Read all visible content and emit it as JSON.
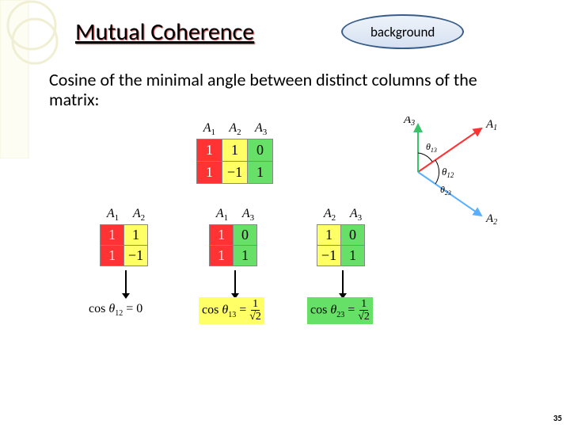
{
  "header": {
    "title": "Mutual Coherence",
    "badge": "background"
  },
  "definition": "Cosine of the minimal angle between distinct columns of the matrix:",
  "main_matrix": {
    "headers": [
      "A₁",
      "A₂",
      "A₃"
    ],
    "rows": [
      [
        {
          "v": "1",
          "c": "red"
        },
        {
          "v": "1",
          "c": "yellow"
        },
        {
          "v": "0",
          "c": "green"
        }
      ],
      [
        {
          "v": "1",
          "c": "red"
        },
        {
          "v": "−1",
          "c": "yellow"
        },
        {
          "v": "1",
          "c": "green"
        }
      ]
    ]
  },
  "sub_matrices": [
    {
      "headers": [
        "A₁",
        "A₂"
      ],
      "rows": [
        [
          {
            "v": "1",
            "c": "red"
          },
          {
            "v": "1",
            "c": "yellow"
          }
        ],
        [
          {
            "v": "1",
            "c": "red"
          },
          {
            "v": "−1",
            "c": "yellow"
          }
        ]
      ],
      "cos_label": "cos θ₁₂ = 0",
      "cos_class": ""
    },
    {
      "headers": [
        "A₁",
        "A₃"
      ],
      "rows": [
        [
          {
            "v": "1",
            "c": "red"
          },
          {
            "v": "0",
            "c": "green"
          }
        ],
        [
          {
            "v": "1",
            "c": "red"
          },
          {
            "v": "1",
            "c": "green"
          }
        ]
      ],
      "cos_label_prefix": "cos θ₁₃ =",
      "cos_frac_num": "1",
      "cos_frac_den": "√2",
      "cos_class": "yellow"
    },
    {
      "headers": [
        "A₂",
        "A₃"
      ],
      "rows": [
        [
          {
            "v": "1",
            "c": "yellow"
          },
          {
            "v": "0",
            "c": "green"
          }
        ],
        [
          {
            "v": "−1",
            "c": "yellow"
          },
          {
            "v": "1",
            "c": "green"
          }
        ]
      ],
      "cos_label_prefix": "cos θ₂₃ =",
      "cos_frac_num": "1",
      "cos_frac_den": "√2",
      "cos_class": "green"
    }
  ],
  "vectors": {
    "labels": {
      "A1": "A₁",
      "A2": "A₂",
      "A3": "A₃"
    },
    "angles": {
      "t12": "θ₁₂",
      "t13": "θ₁₃",
      "t23": "θ₂₃"
    },
    "colors": {
      "A1": "#ff3333",
      "A2": "#5ab0ff",
      "A3": "#39c46a"
    }
  },
  "decor": {
    "rect_fill": "#fefdf3",
    "rect_stroke": "#f4f3d7",
    "circle_stroke": "#f0efd4"
  },
  "page_number": "35"
}
